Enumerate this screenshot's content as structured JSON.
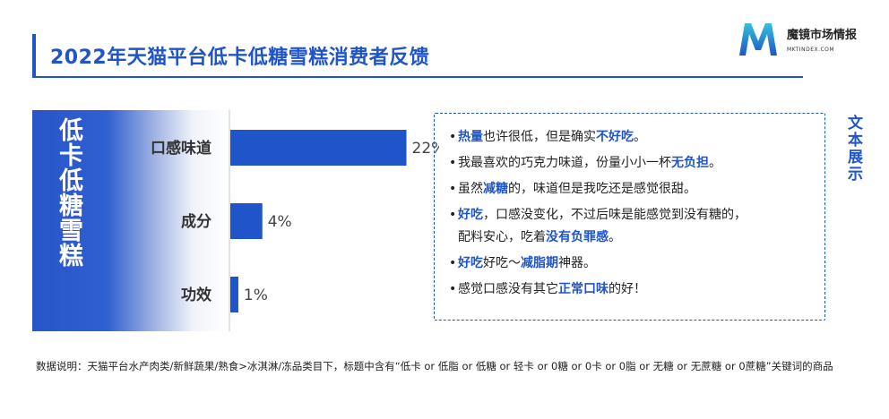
{
  "title": "2022年天猫平台低卡低糖雪糕消费者反馈",
  "brand": {
    "name": "魔镜市场情报",
    "url": "MKTINDEX.COM",
    "accent": "#1f55c9"
  },
  "panel_label": "低卡低糖雪糕",
  "chart_data": {
    "type": "bar",
    "orientation": "horizontal",
    "categories": [
      "口感味道",
      "成分",
      "功效"
    ],
    "values": [
      22,
      4,
      1
    ],
    "value_suffix": "%",
    "data_labels": [
      "22%",
      "4%",
      "1%"
    ],
    "xlim": [
      0,
      30
    ],
    "grid": false,
    "bar_color": "#1f55c9"
  },
  "feedback_label": "文本展示",
  "feedback": [
    {
      "parts": [
        {
          "text": "热量",
          "hl": true
        },
        {
          "text": "也许很低，但是确实",
          "hl": false
        },
        {
          "text": "不好吃",
          "hl": true
        },
        {
          "text": "。",
          "hl": false
        }
      ]
    },
    {
      "parts": [
        {
          "text": "我最喜欢的巧克力味道，份量小小一杯",
          "hl": false
        },
        {
          "text": "无负担",
          "hl": true
        },
        {
          "text": "。",
          "hl": false
        }
      ]
    },
    {
      "parts": [
        {
          "text": "虽然",
          "hl": false
        },
        {
          "text": "减糖",
          "hl": true
        },
        {
          "text": "的，味道但是我吃还是感觉很甜。",
          "hl": false
        }
      ]
    },
    {
      "parts": [
        {
          "text": "好吃",
          "hl": true
        },
        {
          "text": "，口感没变化，不过后味是能感觉到没有糖的，",
          "hl": false
        }
      ]
    },
    {
      "cont": true,
      "parts": [
        {
          "text": "配料安心，吃着",
          "hl": false
        },
        {
          "text": "没有负罪感",
          "hl": true
        },
        {
          "text": "。",
          "hl": false
        }
      ]
    },
    {
      "parts": [
        {
          "text": "好吃",
          "hl": true
        },
        {
          "text": "好吃～",
          "hl": false
        },
        {
          "text": "减脂期",
          "hl": true
        },
        {
          "text": "神器。",
          "hl": false
        }
      ]
    },
    {
      "parts": [
        {
          "text": "感觉口感没有其它",
          "hl": false
        },
        {
          "text": "正常口味",
          "hl": true
        },
        {
          "text": "的好！",
          "hl": false
        }
      ]
    }
  ],
  "note": "数据说明：天猫平台水产肉类/新鲜蔬果/熟食>冰淇淋/冻品类目下，标题中含有“低卡 or 低脂 or 低糖 or 轻卡 or 0糖 or 0卡 or 0脂 or 无糖 or 无蔗糖 or 0蔗糖”关键词的商品"
}
